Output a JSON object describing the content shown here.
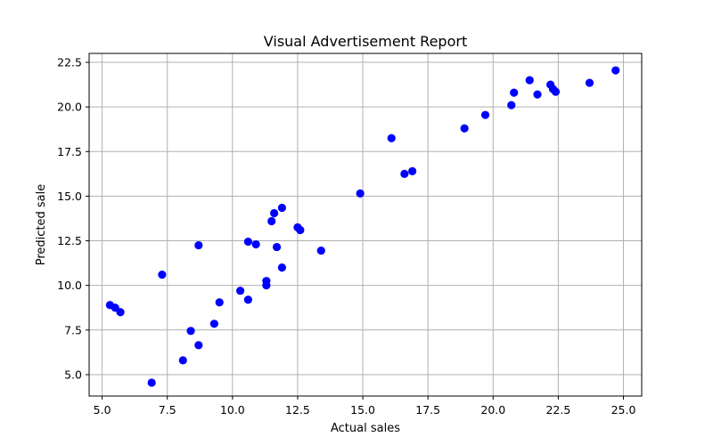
{
  "chart_data": {
    "type": "scatter",
    "title": "Visual Advertisement Report",
    "xlabel": "Actual sales",
    "ylabel": "Predicted sale",
    "xlim": [
      4.5,
      25.7
    ],
    "ylim": [
      3.8,
      23.0
    ],
    "xticks": [
      5.0,
      7.5,
      10.0,
      12.5,
      15.0,
      17.5,
      20.0,
      22.5,
      25.0
    ],
    "yticks": [
      5.0,
      7.5,
      10.0,
      12.5,
      15.0,
      17.5,
      20.0,
      22.5
    ],
    "xtick_labels": [
      "5.0",
      "7.5",
      "10.0",
      "12.5",
      "15.0",
      "17.5",
      "20.0",
      "22.5",
      "25.0"
    ],
    "ytick_labels": [
      "5.0",
      "7.5",
      "10.0",
      "12.5",
      "15.0",
      "17.5",
      "20.0",
      "22.5"
    ],
    "grid": true,
    "color": "#0000ff",
    "series": [
      {
        "x": [
          5.3,
          5.5,
          5.7,
          6.9,
          7.3,
          8.1,
          8.4,
          8.7,
          8.7,
          9.3,
          9.5,
          10.3,
          10.6,
          10.6,
          10.9,
          11.3,
          11.3,
          11.5,
          11.6,
          11.7,
          11.9,
          11.9,
          12.5,
          12.6,
          13.4,
          14.9,
          16.1,
          16.6,
          16.9,
          18.9,
          19.7,
          20.7,
          20.8,
          21.4,
          21.7,
          22.2,
          22.3,
          22.4,
          23.7,
          24.7
        ],
        "y": [
          8.9,
          8.75,
          8.5,
          4.55,
          10.6,
          5.8,
          7.45,
          6.65,
          12.25,
          7.85,
          9.05,
          9.7,
          9.2,
          12.45,
          12.3,
          10.25,
          10.0,
          13.6,
          14.05,
          12.15,
          14.35,
          11.0,
          13.25,
          13.1,
          11.95,
          15.15,
          18.25,
          16.25,
          16.4,
          18.8,
          19.55,
          20.1,
          20.8,
          21.5,
          20.7,
          21.25,
          21.0,
          20.85,
          21.35,
          22.05
        ]
      }
    ]
  }
}
